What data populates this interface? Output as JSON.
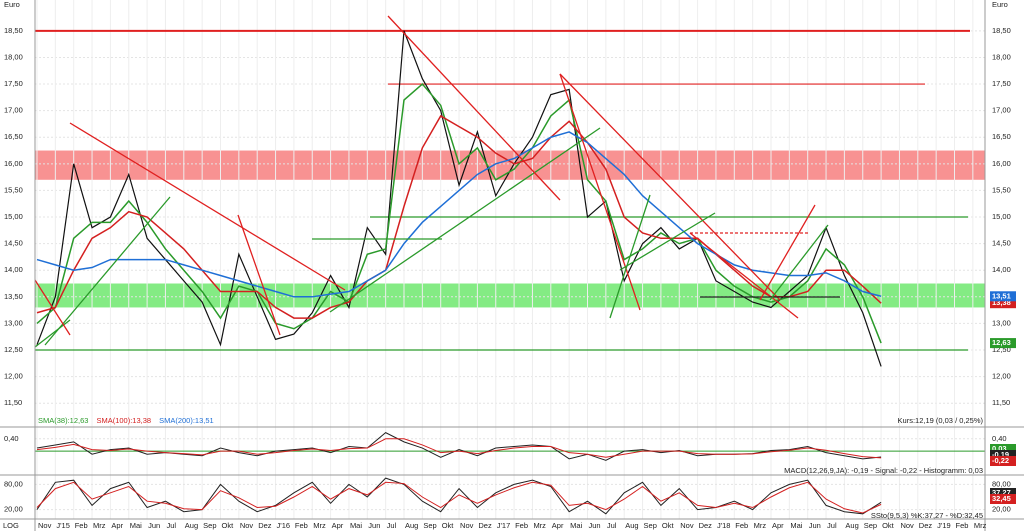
{
  "chart_data": {
    "type": "line",
    "y_unit": "Euro",
    "scale_label": "LOG",
    "categories": [
      "Nov",
      "J'15",
      "Feb",
      "Mrz",
      "Apr",
      "Mai",
      "Jun",
      "Jul",
      "Aug",
      "Sep",
      "Okt",
      "Nov",
      "Dez",
      "J'16",
      "Feb",
      "Mrz",
      "Apr",
      "Mai",
      "Jun",
      "Jul",
      "Aug",
      "Sep",
      "Okt",
      "Nov",
      "Dez",
      "J'17",
      "Feb",
      "Mrz",
      "Apr",
      "Mai",
      "Jun",
      "Jul",
      "Aug",
      "Sep",
      "Okt",
      "Nov",
      "Dez",
      "J'18",
      "Feb",
      "Mrz",
      "Apr",
      "Mai",
      "Jun",
      "Jul",
      "Aug",
      "Sep",
      "Okt",
      "Nov",
      "Dez",
      "J'19",
      "Feb",
      "Mrz"
    ],
    "ylim": [
      11.09,
      19.08
    ],
    "yticks": [
      {
        "value": 11.5,
        "label": "11,50"
      },
      {
        "value": 12,
        "label": "12,00"
      },
      {
        "value": 12.5,
        "label": "12,50"
      },
      {
        "value": 13,
        "label": "13,00"
      },
      {
        "value": 13.5,
        "label": "13,50"
      },
      {
        "value": 14,
        "label": "14,00"
      },
      {
        "value": 14.5,
        "label": "14,50"
      },
      {
        "value": 15,
        "label": "15,00"
      },
      {
        "value": 15.5,
        "label": "15,50"
      },
      {
        "value": 16,
        "label": "16,00"
      },
      {
        "value": 16.5,
        "label": "16,50"
      },
      {
        "value": 17,
        "label": "17,00"
      },
      {
        "value": 17.5,
        "label": "17,50"
      },
      {
        "value": 18,
        "label": "18,00"
      },
      {
        "value": 18.5,
        "label": "18,50"
      }
    ],
    "grid": true,
    "series": [
      {
        "name": "Kurs",
        "color": "#111111",
        "values": [
          12.6,
          13.5,
          16.0,
          14.8,
          15.0,
          15.8,
          14.6,
          14.2,
          13.8,
          13.4,
          12.6,
          14.3,
          13.5,
          12.7,
          12.8,
          13.2,
          13.9,
          13.3,
          14.8,
          14.3,
          18.5,
          17.6,
          17.0,
          15.6,
          16.6,
          15.4,
          16.0,
          16.5,
          17.3,
          17.4,
          15.0,
          15.3,
          13.8,
          14.5,
          14.8,
          14.4,
          14.6,
          13.8,
          13.6,
          13.4,
          13.3,
          13.6,
          13.9,
          14.8,
          13.9,
          13.2,
          12.19,
          null,
          null,
          null,
          null,
          null
        ]
      },
      {
        "name": "SMA(38):12,63",
        "color": "#2a9a2a",
        "badge": "12,63",
        "values": [
          13.0,
          13.3,
          14.6,
          14.9,
          14.9,
          15.3,
          14.9,
          14.4,
          14.0,
          13.6,
          13.1,
          13.7,
          13.6,
          13.0,
          12.9,
          13.1,
          13.6,
          13.4,
          14.3,
          14.4,
          17.2,
          17.5,
          17.1,
          16.0,
          16.3,
          15.7,
          15.9,
          16.3,
          16.9,
          17.2,
          15.7,
          15.3,
          14.2,
          14.4,
          14.7,
          14.5,
          14.6,
          14.0,
          13.7,
          13.5,
          13.4,
          13.5,
          13.8,
          14.4,
          14.1,
          13.5,
          12.63,
          null,
          null,
          null,
          null,
          null
        ]
      },
      {
        "name": "SMA(100):13,38",
        "color": "#d42020",
        "badge": "13,38",
        "values": [
          13.2,
          13.3,
          14.0,
          14.6,
          14.8,
          15.1,
          15.0,
          14.7,
          14.4,
          14.0,
          13.6,
          13.6,
          13.6,
          13.3,
          13.1,
          13.1,
          13.3,
          13.4,
          13.8,
          14.0,
          15.2,
          16.3,
          16.9,
          16.7,
          16.5,
          16.2,
          16.0,
          16.1,
          16.5,
          16.8,
          16.4,
          15.9,
          15.0,
          14.7,
          14.6,
          14.6,
          14.6,
          14.3,
          14.0,
          13.7,
          13.5,
          13.5,
          13.6,
          14.0,
          14.0,
          13.7,
          13.38,
          null,
          null,
          null,
          null,
          null
        ]
      },
      {
        "name": "SMA(200):13,51",
        "color": "#1f6fd6",
        "badge": "13,51",
        "values": [
          14.2,
          14.1,
          14.0,
          14.05,
          14.2,
          14.2,
          14.2,
          14.2,
          14.1,
          14.0,
          13.9,
          13.8,
          13.7,
          13.6,
          13.5,
          13.5,
          13.55,
          13.6,
          13.8,
          14.0,
          14.5,
          14.9,
          15.2,
          15.5,
          15.8,
          16.0,
          16.1,
          16.3,
          16.5,
          16.6,
          16.4,
          16.1,
          15.8,
          15.4,
          15.1,
          14.8,
          14.5,
          14.3,
          14.1,
          14.0,
          13.95,
          13.9,
          13.9,
          13.95,
          13.8,
          13.6,
          13.51,
          null,
          null,
          null,
          null,
          null
        ]
      }
    ],
    "levels": [
      {
        "value": 18.5,
        "color": "#e02020"
      },
      {
        "value": 17.5,
        "color": "#e02020"
      },
      {
        "value": 15.0,
        "color": "#2a9a2a"
      },
      {
        "value": 12.5,
        "color": "#2a9a2a"
      }
    ],
    "zones": [
      {
        "from": 15.7,
        "to": 16.25,
        "color": "#f77f7f"
      },
      {
        "from": 13.3,
        "to": 13.75,
        "color": "#6ee86e"
      }
    ],
    "quote": "Kurs:12,19 (0,03 / 0,25%)",
    "macd": {
      "label": "MACD(12,26,9,JA): -0,19 - Signal: -0,22 - Histogramm: 0,03",
      "ylim": [
        -0.45,
        0.75
      ],
      "yticks": [
        {
          "value": 0.4,
          "label": "0,40"
        }
      ],
      "badges": [
        "0,03",
        "-0,19",
        "-0,22"
      ],
      "series": [
        {
          "name": "MACD",
          "color": "#222222",
          "values": [
            0.1,
            0.2,
            0.3,
            -0.1,
            0.05,
            0.1,
            -0.1,
            -0.05,
            -0.1,
            -0.15,
            0.1,
            -0.05,
            -0.15,
            0,
            0.05,
            0.1,
            -0.05,
            0.15,
            0.1,
            0.6,
            0.3,
            0.1,
            -0.2,
            0.05,
            -0.15,
            0.1,
            0.15,
            0.2,
            0.15,
            -0.25,
            -0.1,
            -0.3,
            0.0,
            0.05,
            -0.05,
            0.02,
            -0.15,
            -0.1,
            -0.1,
            -0.08,
            0.02,
            0.05,
            0.15,
            -0.05,
            -0.15,
            -0.25,
            -0.19,
            null,
            null,
            null,
            null,
            null
          ]
        },
        {
          "name": "Signal",
          "color": "#d42020",
          "values": [
            0.05,
            0.12,
            0.22,
            0.05,
            0.02,
            0.07,
            0.0,
            -0.05,
            -0.08,
            -0.12,
            0.0,
            0.0,
            -0.1,
            -0.05,
            0.02,
            0.07,
            0.02,
            0.08,
            0.1,
            0.4,
            0.4,
            0.2,
            -0.05,
            0.0,
            -0.08,
            0.02,
            0.1,
            0.15,
            0.15,
            -0.05,
            -0.1,
            -0.2,
            -0.1,
            0.0,
            0.0,
            0.0,
            -0.08,
            -0.1,
            -0.1,
            -0.09,
            -0.02,
            0.03,
            0.1,
            0.03,
            -0.08,
            -0.18,
            -0.22,
            null,
            null,
            null,
            null,
            null
          ]
        }
      ]
    },
    "stoch": {
      "label": "SSto(9,5,3) %K:37,27 - %D:32,45",
      "ylim": [
        0,
        100
      ],
      "yticks": [
        {
          "value": 80,
          "label": "80,00"
        },
        {
          "value": 20,
          "label": "20,00"
        }
      ],
      "badges": [
        "37,27",
        "32,45"
      ],
      "series": [
        {
          "name": "%K",
          "color": "#222222",
          "values": [
            20,
            85,
            90,
            30,
            70,
            85,
            25,
            40,
            15,
            20,
            80,
            40,
            15,
            30,
            60,
            85,
            35,
            80,
            50,
            95,
            80,
            40,
            15,
            70,
            25,
            60,
            80,
            90,
            75,
            15,
            40,
            10,
            60,
            85,
            30,
            70,
            20,
            25,
            40,
            20,
            60,
            80,
            90,
            30,
            15,
            10,
            37.27,
            null,
            null,
            null,
            null,
            null
          ]
        },
        {
          "name": "%D",
          "color": "#d42020",
          "values": [
            25,
            70,
            85,
            45,
            60,
            75,
            40,
            35,
            22,
            20,
            65,
            48,
            25,
            28,
            50,
            75,
            45,
            70,
            55,
            85,
            82,
            50,
            25,
            55,
            35,
            55,
            72,
            85,
            78,
            30,
            35,
            20,
            45,
            75,
            40,
            60,
            30,
            25,
            35,
            25,
            50,
            72,
            85,
            45,
            22,
            12,
            32.45,
            null,
            null,
            null,
            null,
            null
          ]
        }
      ]
    }
  }
}
